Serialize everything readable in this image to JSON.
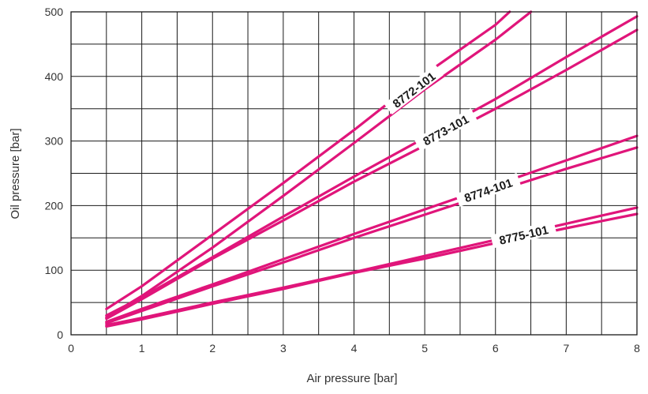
{
  "chart_data": {
    "type": "line",
    "xlabel": "Air pressure  [bar]",
    "ylabel": "Oil pressure  [bar]",
    "xlim": [
      0,
      8
    ],
    "ylim": [
      0,
      500
    ],
    "x_ticks": [
      "0",
      "1",
      "2",
      "3",
      "4",
      "5",
      "6",
      "7",
      "8"
    ],
    "y_ticks": [
      "0",
      "100",
      "200",
      "300",
      "400",
      "500"
    ],
    "grid": true,
    "x_minor_step": 0.5,
    "y_minor_step": 50,
    "line_color": "#e0157a",
    "series": [
      {
        "name": "8772-101",
        "x": [
          0.5,
          1,
          2,
          3,
          4,
          5,
          6,
          6.2
        ],
        "y": [
          40,
          75,
          155,
          235,
          317,
          403,
          480,
          500
        ]
      },
      {
        "name": "",
        "x": [
          0.5,
          1,
          2,
          3,
          4,
          5,
          6,
          6.5
        ],
        "y": [
          27,
          60,
          135,
          215,
          297,
          380,
          457,
          500
        ]
      },
      {
        "name": "8773-101",
        "x": [
          0.5,
          1,
          2,
          3,
          4,
          5,
          6,
          7,
          8
        ],
        "y": [
          30,
          58,
          120,
          183,
          245,
          305,
          365,
          430,
          493
        ]
      },
      {
        "name": "",
        "x": [
          0.5,
          1,
          2,
          3,
          4,
          5,
          6,
          7,
          8
        ],
        "y": [
          25,
          55,
          118,
          177,
          237,
          293,
          350,
          410,
          472
        ]
      },
      {
        "name": "8774-101",
        "x": [
          0.5,
          1,
          2,
          3,
          4,
          5,
          6,
          7,
          8
        ],
        "y": [
          20,
          40,
          78,
          117,
          156,
          194,
          232,
          270,
          308
        ]
      },
      {
        "name": "",
        "x": [
          0.5,
          1,
          2,
          3,
          4,
          5,
          6,
          7,
          8
        ],
        "y": [
          18,
          37,
          75,
          112,
          150,
          186,
          222,
          257,
          290
        ]
      },
      {
        "name": "8775-101",
        "x": [
          0.5,
          1,
          2,
          3,
          4,
          5,
          6,
          7,
          8
        ],
        "y": [
          15,
          26,
          50,
          73,
          97,
          122,
          147,
          172,
          197
        ]
      },
      {
        "name": "",
        "x": [
          0.5,
          1,
          2,
          3,
          4,
          5,
          6,
          7,
          8
        ],
        "y": [
          13,
          24,
          48,
          71,
          96,
          118,
          142,
          165,
          187
        ]
      }
    ]
  }
}
